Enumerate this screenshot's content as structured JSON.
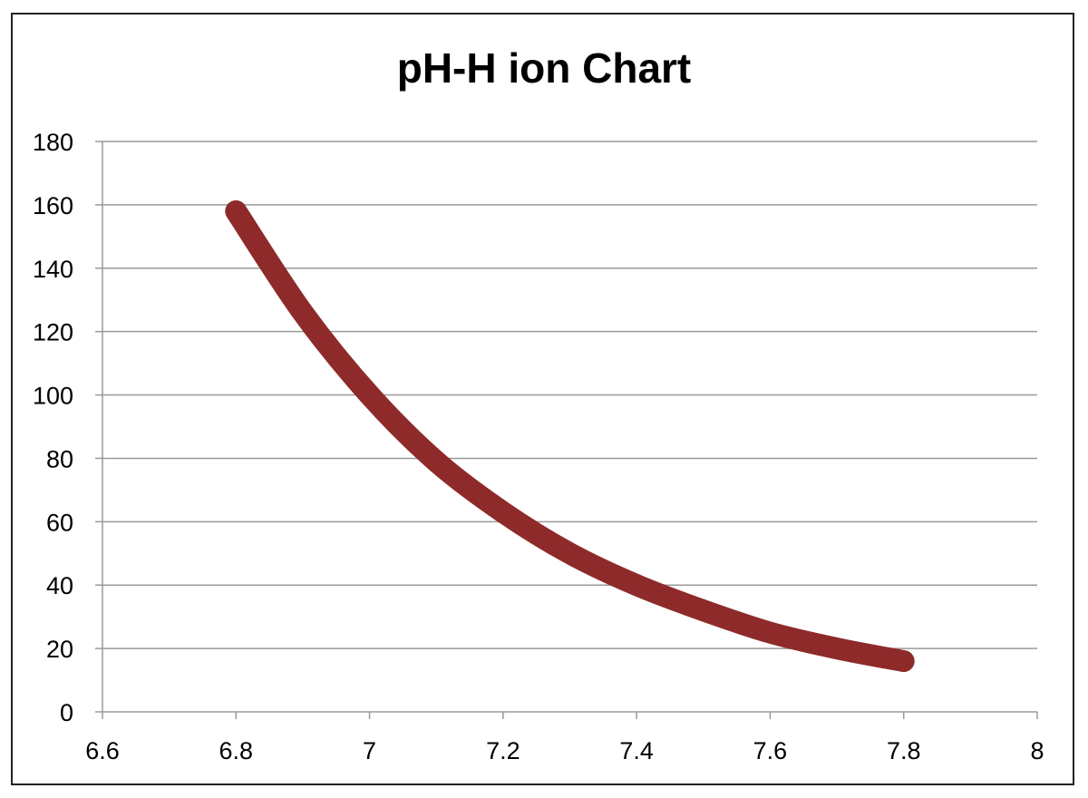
{
  "chart_data": {
    "type": "line",
    "title": "pH-H ion Chart",
    "xlabel": "",
    "ylabel": "",
    "xlim": [
      6.6,
      8
    ],
    "ylim": [
      0,
      180
    ],
    "xticks": [
      6.6,
      6.8,
      7,
      7.2,
      7.4,
      7.6,
      7.8,
      8
    ],
    "xtick_labels": [
      "6.6",
      "6.8",
      "7",
      "7.2",
      "7.4",
      "7.6",
      "7.8",
      "8"
    ],
    "yticks": [
      0,
      20,
      40,
      60,
      80,
      100,
      120,
      140,
      160,
      180
    ],
    "ytick_labels": [
      "0",
      "20",
      "40",
      "60",
      "80",
      "100",
      "120",
      "140",
      "160",
      "180"
    ],
    "grid": "horizontal",
    "legend": "none",
    "series": [
      {
        "color": "#8e2a2a",
        "x": [
          6.8,
          6.9,
          7.0,
          7.1,
          7.2,
          7.3,
          7.4,
          7.5,
          7.6,
          7.7,
          7.8
        ],
        "y": [
          158,
          126,
          100,
          79,
          63,
          50,
          40,
          32,
          25,
          20,
          16
        ]
      }
    ]
  }
}
